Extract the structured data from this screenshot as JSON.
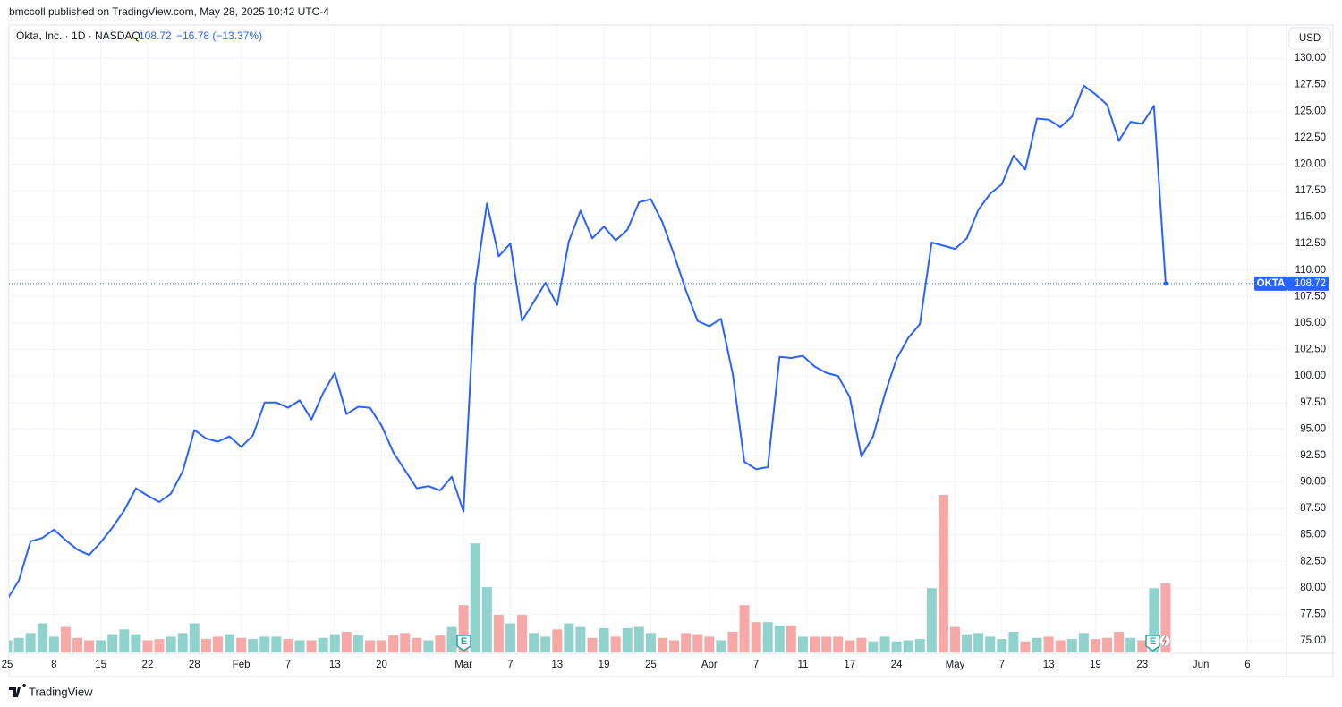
{
  "header": {
    "published": "bmccoll published on TradingView.com, May 28, 2025 10:42 UTC-4"
  },
  "footer": {
    "brand": "TradingView"
  },
  "chart_data": {
    "type": "line",
    "title": "Okta, Inc. · 1D · NASDAQ",
    "change_label": "−16.78 (−13.37%)",
    "symbol_tag": "OKTA",
    "currency": "USD",
    "earnings_marker": "E",
    "color": "#2962ff",
    "grid": true,
    "categories": [
      "25",
      null,
      null,
      null,
      "8",
      null,
      null,
      null,
      "15",
      null,
      null,
      null,
      "22",
      null,
      null,
      null,
      "28",
      null,
      null,
      null,
      "Feb",
      null,
      null,
      null,
      "7",
      null,
      null,
      null,
      "13",
      null,
      null,
      null,
      "20",
      null,
      null,
      null,
      null,
      null,
      null,
      "Mar",
      null,
      null,
      null,
      "7",
      null,
      null,
      null,
      "13",
      null,
      null,
      null,
      "19",
      null,
      null,
      null,
      "25",
      null,
      null,
      null,
      null,
      "Apr",
      null,
      null,
      null,
      "7",
      null,
      null,
      null,
      "11",
      null,
      null,
      null,
      "17",
      null,
      null,
      null,
      "24",
      null,
      null,
      null,
      null,
      "May",
      null,
      null,
      null,
      "7",
      null,
      null,
      null,
      "13",
      null,
      null,
      null,
      "19",
      null,
      null,
      null,
      "23",
      null,
      null,
      null,
      null,
      "Jun",
      null,
      null,
      null,
      "6"
    ],
    "values": [
      78.9,
      80.7,
      84.4,
      84.7,
      85.5,
      84.5,
      83.6,
      83.1,
      84.3,
      85.7,
      87.3,
      89.4,
      88.7,
      88.1,
      88.9,
      91.0,
      94.9,
      94.1,
      93.8,
      94.3,
      93.3,
      94.4,
      97.5,
      97.5,
      97.0,
      97.7,
      95.9,
      98.4,
      100.3,
      96.4,
      97.1,
      97.0,
      95.3,
      92.8,
      91.1,
      89.4,
      89.6,
      89.2,
      90.5,
      87.2,
      108.6,
      116.3,
      111.3,
      112.5,
      105.2,
      107.0,
      108.8,
      106.7,
      112.7,
      115.6,
      113.0,
      114.1,
      112.8,
      113.8,
      116.4,
      116.7,
      114.5,
      111.4,
      108.1,
      105.2,
      104.7,
      105.4,
      100.2,
      91.9,
      91.2,
      91.4,
      101.8,
      101.7,
      101.9,
      100.9,
      100.3,
      100.0,
      98.0,
      92.4,
      94.3,
      98.3,
      101.6,
      103.6,
      104.9,
      112.6,
      112.3,
      112.0,
      113.0,
      115.7,
      117.2,
      118.1,
      120.8,
      119.5,
      124.3,
      124.2,
      123.5,
      124.5,
      127.4,
      126.6,
      125.6,
      122.2,
      124.0,
      123.8,
      125.5,
      108.72,
      null,
      null,
      null,
      null,
      null,
      null,
      null
    ],
    "volume": [
      1.0,
      1.2,
      1.6,
      2.4,
      1.3,
      2.1,
      1.2,
      1.0,
      1.0,
      1.5,
      1.9,
      1.5,
      1.0,
      1.1,
      1.3,
      1.6,
      2.4,
      1.1,
      1.3,
      1.5,
      1.2,
      1.1,
      1.3,
      1.3,
      1.1,
      1.0,
      1.0,
      1.2,
      1.5,
      1.7,
      1.4,
      1.0,
      1.0,
      1.4,
      1.6,
      1.2,
      1.0,
      1.4,
      2.1,
      3.9,
      9.0,
      5.4,
      3.1,
      2.4,
      3.1,
      1.6,
      1.3,
      1.9,
      2.4,
      2.1,
      1.2,
      2.0,
      1.3,
      2.0,
      2.1,
      1.6,
      1.2,
      1.0,
      1.6,
      1.5,
      1.3,
      1.0,
      1.7,
      3.9,
      2.5,
      2.5,
      2.2,
      2.2,
      1.3,
      1.3,
      1.3,
      1.3,
      1.0,
      1.2,
      0.9,
      1.3,
      0.9,
      1.0,
      1.1,
      5.3,
      13.0,
      2.1,
      1.5,
      1.6,
      1.3,
      1.1,
      1.7,
      0.9,
      1.2,
      1.3,
      1.0,
      1.1,
      1.6,
      1.1,
      1.2,
      1.7,
      1.2,
      1.0,
      5.3,
      5.7,
      null,
      null,
      null,
      null,
      null,
      null,
      null
    ],
    "volume_up_color": "#92d2cc",
    "volume_down_color": "#f7a9a7",
    "ylim": [
      73.82,
      133.13
    ],
    "yticks": [
      {
        "value": 75,
        "label": "75.00"
      },
      {
        "value": 77.5,
        "label": "77.50"
      },
      {
        "value": 80,
        "label": "80.00"
      },
      {
        "value": 82.5,
        "label": "82.50"
      },
      {
        "value": 85,
        "label": "85.00"
      },
      {
        "value": 87.5,
        "label": "87.50"
      },
      {
        "value": 90,
        "label": "90.00"
      },
      {
        "value": 92.5,
        "label": "92.50"
      },
      {
        "value": 95,
        "label": "95.00"
      },
      {
        "value": 97.5,
        "label": "97.50"
      },
      {
        "value": 100,
        "label": "100.00"
      },
      {
        "value": 102.5,
        "label": "102.50"
      },
      {
        "value": 105,
        "label": "105.00"
      },
      {
        "value": 107.5,
        "label": "107.50"
      },
      {
        "value": 110,
        "label": "110.00"
      },
      {
        "value": 112.5,
        "label": "112.50"
      },
      {
        "value": 115,
        "label": "115.00"
      },
      {
        "value": 117.5,
        "label": "117.50"
      },
      {
        "value": 120,
        "label": "120.00"
      },
      {
        "value": 122.5,
        "label": "122.50"
      },
      {
        "value": 125,
        "label": "125.00"
      },
      {
        "value": 127.5,
        "label": "127.50"
      },
      {
        "value": 130,
        "label": "130.00"
      }
    ]
  }
}
